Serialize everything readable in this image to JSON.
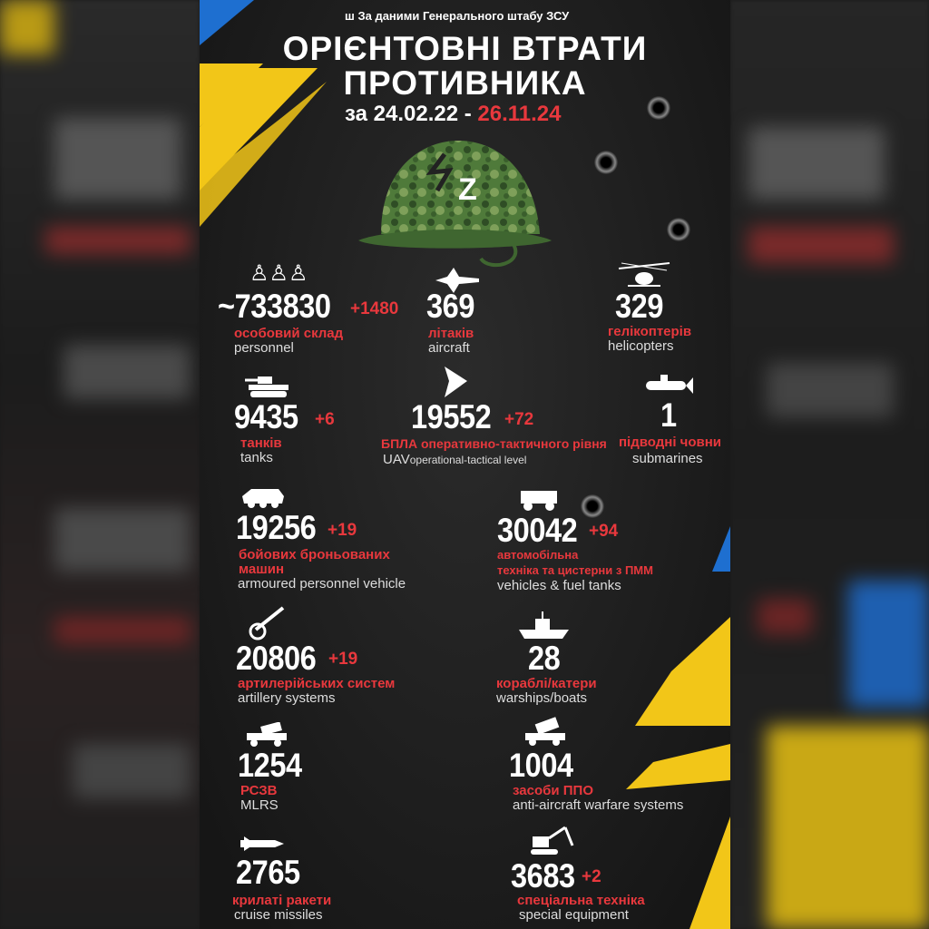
{
  "header": {
    "source": "За даними Генерального штабу ЗСУ",
    "title_line1": "ОРІЄНТОВНІ ВТРАТИ",
    "title_line2": "ПРОТИВНИКА",
    "date_prefix": "за 24.02.22 -",
    "date_end": "26.11.24"
  },
  "colors": {
    "red": "#e8383d",
    "yellow": "#f2c618",
    "blue": "#1e6fd0",
    "background": "#1c1c1c"
  },
  "helmet": {
    "mark": "Z"
  },
  "stats": {
    "personnel": {
      "icon": "soldiers-icon",
      "value": "~733830",
      "delta": "+1480",
      "ua": "особовий склад",
      "en": "personnel"
    },
    "aircraft": {
      "icon": "jet-icon",
      "value": "369",
      "ua": "літаків",
      "en": "aircraft"
    },
    "helicopters": {
      "icon": "helicopter-icon",
      "value": "329",
      "ua": "гелікоптерів",
      "en": "helicopters"
    },
    "tanks": {
      "icon": "tank-icon",
      "value": "9435",
      "delta": "+6",
      "ua": "танків",
      "en": "tanks"
    },
    "uav": {
      "icon": "drone-icon",
      "value": "19552",
      "delta": "+72",
      "ua": "БПЛА оперативно-тактичного рівня",
      "en_a": "UAV",
      "en_b": "operational-tactical level"
    },
    "submarines": {
      "icon": "submarine-icon",
      "value": "1",
      "ua": "підводні човни",
      "en": "submarines"
    },
    "apv": {
      "icon": "apc-icon",
      "value": "19256",
      "delta": "+19",
      "ua1": "бойових броньованих",
      "ua2": "машин",
      "en": "armoured personnel vehicle"
    },
    "vehicles": {
      "icon": "truck-icon",
      "value": "30042",
      "delta": "+94",
      "ua1": "автомобільна",
      "ua2": "техніка та цистерни з ПММ",
      "en": "vehicles & fuel tanks"
    },
    "artillery": {
      "icon": "cannon-icon",
      "value": "20806",
      "delta": "+19",
      "ua": "артилерійських систем",
      "en": "artillery systems"
    },
    "warships": {
      "icon": "warship-icon",
      "value": "28",
      "ua": "кораблі/катери",
      "en": "warships/boats"
    },
    "mlrs": {
      "icon": "mlrs-icon",
      "value": "1254",
      "ua": "РСЗВ",
      "en": "MLRS"
    },
    "aa": {
      "icon": "air-defense-icon",
      "value": "1004",
      "ua": "засоби ППО",
      "en": "anti-aircraft warfare systems"
    },
    "cruise": {
      "icon": "missile-icon",
      "value": "2765",
      "ua": "крилаті ракети",
      "en": "cruise missiles"
    },
    "special": {
      "icon": "excavator-icon",
      "value": "3683",
      "delta": "+2",
      "ua": "спеціальна техніка",
      "en": "special equipment"
    }
  }
}
